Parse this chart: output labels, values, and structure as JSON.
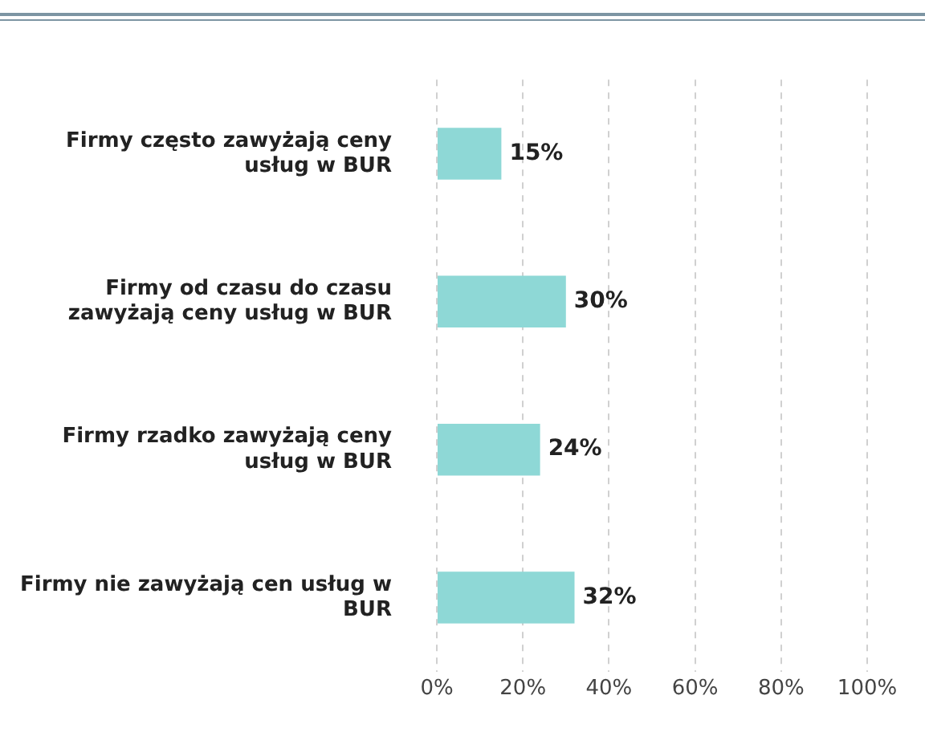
{
  "chart_data": {
    "type": "bar",
    "orientation": "horizontal",
    "categories": [
      "Firmy często zawyżają ceny usług w BUR",
      "Firmy od czasu do czasu zawyżają ceny usług w BUR",
      "Firmy rzadko zawyżają ceny usług w BUR",
      "Firmy nie zawyżają cen usług w BUR"
    ],
    "values": [
      15,
      30,
      24,
      32
    ],
    "color": "#8ed8d6",
    "value_labels": [
      "15%",
      "30%",
      "24%",
      "32%"
    ],
    "xlim": [
      0,
      100
    ],
    "xticks": [
      {
        "value": 0,
        "label": "0%"
      },
      {
        "value": 20,
        "label": "20%"
      },
      {
        "value": 40,
        "label": "40%"
      },
      {
        "value": 60,
        "label": "60%"
      },
      {
        "value": 80,
        "label": "80%"
      },
      {
        "value": 100,
        "label": "100%"
      }
    ],
    "grid": "x",
    "legend": false
  }
}
